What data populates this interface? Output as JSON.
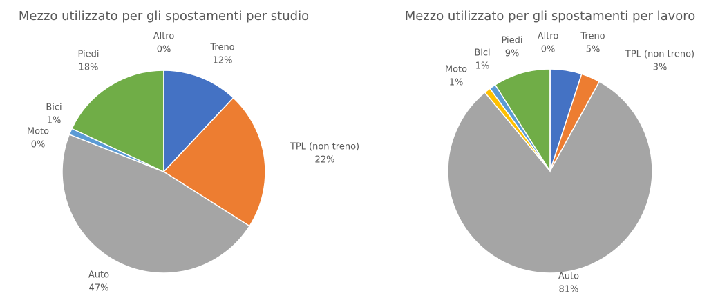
{
  "chart_data": [
    {
      "type": "pie",
      "title": "Mezzo utilizzato per gli spostamenti per studio",
      "categories": [
        "Treno",
        "TPL (non treno)",
        "Auto",
        "Moto",
        "Bici",
        "Piedi",
        "Altro"
      ],
      "values": [
        12,
        22,
        47,
        0,
        1,
        18,
        0
      ],
      "value_labels": [
        "12%",
        "22%",
        "47%",
        "0%",
        "1%",
        "18%",
        "0%"
      ],
      "colors": [
        "#4472c4",
        "#ed7d31",
        "#a5a5a5",
        "#ffc000",
        "#5b9bd5",
        "#70ad47",
        "#264478"
      ]
    },
    {
      "type": "pie",
      "title": "Mezzo utilizzato per gli spostamenti per lavoro",
      "categories": [
        "Treno",
        "TPL (non treno)",
        "Auto",
        "Moto",
        "Bici",
        "Piedi",
        "Altro"
      ],
      "values": [
        5,
        3,
        81,
        1,
        1,
        9,
        0
      ],
      "value_labels": [
        "5%",
        "3%",
        "81%",
        "1%",
        "1%",
        "9%",
        "0%"
      ],
      "colors": [
        "#4472c4",
        "#ed7d31",
        "#a5a5a5",
        "#ffc000",
        "#5b9bd5",
        "#70ad47",
        "#264478"
      ]
    }
  ]
}
